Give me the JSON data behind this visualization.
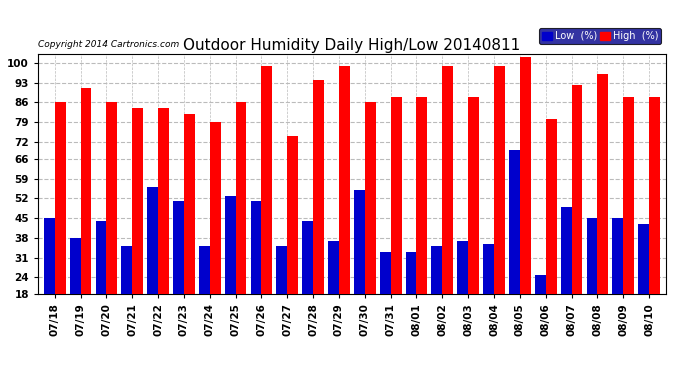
{
  "title": "Outdoor Humidity Daily High/Low 20140811",
  "copyright": "Copyright 2014 Cartronics.com",
  "dates": [
    "07/18",
    "07/19",
    "07/20",
    "07/21",
    "07/22",
    "07/23",
    "07/24",
    "07/25",
    "07/26",
    "07/27",
    "07/28",
    "07/29",
    "07/30",
    "07/31",
    "08/01",
    "08/02",
    "08/03",
    "08/04",
    "08/05",
    "08/06",
    "08/07",
    "08/08",
    "08/09",
    "08/10"
  ],
  "high": [
    86,
    91,
    86,
    84,
    84,
    82,
    79,
    86,
    99,
    74,
    94,
    99,
    86,
    88,
    88,
    99,
    88,
    99,
    102,
    80,
    92,
    96,
    88,
    88
  ],
  "low": [
    45,
    38,
    44,
    35,
    56,
    51,
    35,
    53,
    51,
    35,
    44,
    37,
    55,
    33,
    33,
    35,
    37,
    36,
    69,
    25,
    49,
    45,
    45,
    43
  ],
  "bar_width": 0.42,
  "high_color": "#ff0000",
  "low_color": "#0000cc",
  "background_color": "#ffffff",
  "grid_color": "#bbbbbb",
  "ylim": [
    18,
    103
  ],
  "yticks": [
    18,
    24,
    31,
    38,
    45,
    52,
    59,
    66,
    72,
    79,
    86,
    93,
    100
  ],
  "title_fontsize": 11,
  "tick_fontsize": 7.5,
  "legend_low_label": "Low  (%)",
  "legend_high_label": "High  (%)"
}
